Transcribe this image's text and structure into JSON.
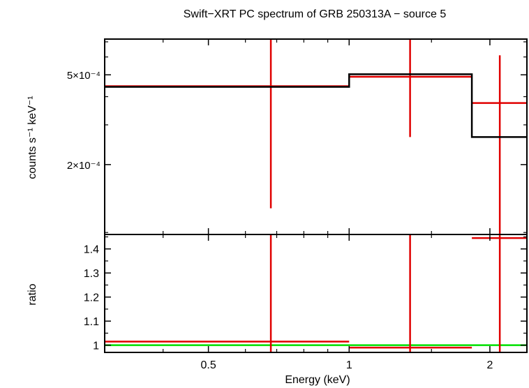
{
  "chart_data": [
    {
      "type": "scatter",
      "title": "Swift−XRT PC spectrum of GRB 250313A − source 5",
      "ylabel": "counts s⁻¹ keV⁻¹",
      "xlabel": "",
      "xscale": "log",
      "yscale": "log",
      "xlim": [
        0.3,
        2.4
      ],
      "ylim": [
        9.8e-05,
        0.00072
      ],
      "y_ticks": [
        {
          "value": 0.0002,
          "label": "2×10⁻⁴"
        },
        {
          "value": 0.0005,
          "label": "5×10⁻⁴"
        }
      ],
      "series": [
        {
          "kind": "data",
          "color": "#e00000",
          "points": [
            {
              "x": 0.68,
              "xlo": 0.3,
              "xhi": 1.0,
              "y": 0.000445,
              "ylo": 0.000128,
              "yhi": 0.00072
            },
            {
              "x": 1.35,
              "xlo": 1.0,
              "xhi": 1.83,
              "y": 0.00049,
              "ylo": 0.000265,
              "yhi": 0.00072
            },
            {
              "x": 2.1,
              "xlo": 1.83,
              "xhi": 2.4,
              "y": 0.000375,
              "ylo": 9.8e-05,
              "yhi": 0.00061
            }
          ]
        },
        {
          "kind": "model",
          "color": "#000000",
          "steps": [
            {
              "xlo": 0.3,
              "xhi": 1.0,
              "y": 0.000442
            },
            {
              "xlo": 1.0,
              "xhi": 1.83,
              "y": 0.000503
            },
            {
              "xlo": 1.83,
              "xhi": 2.4,
              "y": 0.000265
            }
          ]
        }
      ]
    },
    {
      "type": "scatter",
      "ylabel": "ratio",
      "xlabel": "Energy (keV)",
      "xscale": "log",
      "xlim": [
        0.3,
        2.4
      ],
      "ylim": [
        0.97,
        1.46
      ],
      "y_ticks": [
        {
          "value": 1.0,
          "label": "1"
        },
        {
          "value": 1.1,
          "label": "1.1"
        },
        {
          "value": 1.2,
          "label": "1.2"
        },
        {
          "value": 1.3,
          "label": "1.3"
        },
        {
          "value": 1.4,
          "label": "1.4"
        }
      ],
      "x_ticks": [
        {
          "value": 0.5,
          "label": "0.5"
        },
        {
          "value": 1.0,
          "label": "1"
        },
        {
          "value": 2.0,
          "label": "2"
        }
      ],
      "reference_line": {
        "y": 1.0,
        "color": "#00e000"
      },
      "series": [
        {
          "kind": "data",
          "color": "#e00000",
          "points": [
            {
              "x": 0.68,
              "xlo": 0.3,
              "xhi": 1.0,
              "y": 1.015,
              "ylo": 0.97,
              "yhi": 1.46
            },
            {
              "x": 1.35,
              "xlo": 1.0,
              "xhi": 1.83,
              "y": 0.99,
              "ylo": 0.97,
              "yhi": 1.46
            },
            {
              "x": 2.1,
              "xlo": 1.83,
              "xhi": 2.4,
              "y": 1.445,
              "ylo": 0.97,
              "yhi": 1.46
            }
          ]
        }
      ]
    }
  ]
}
